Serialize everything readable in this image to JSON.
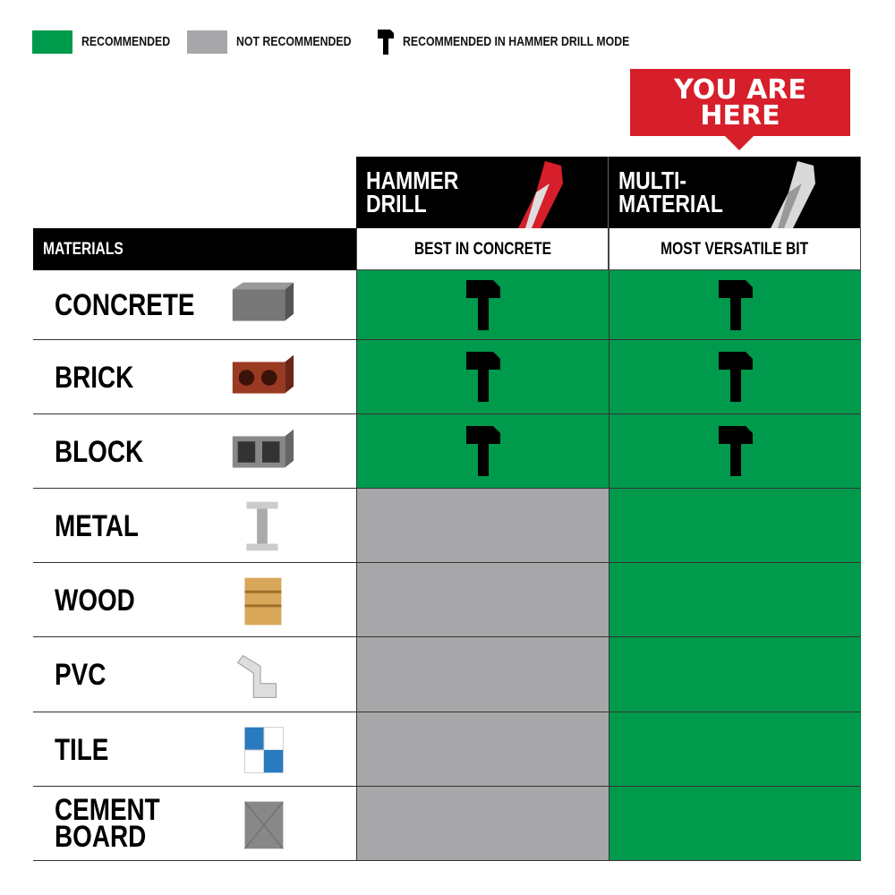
{
  "legend": [
    {
      "label": "RECOMMENDED",
      "color": "#009a4d"
    },
    {
      "label": "NOT RECOMMENDED",
      "color": "#a7a7aa"
    },
    {
      "label": "RECOMMENDED IN HAMMER DRILL MODE",
      "icon": "hammer-icon"
    }
  ],
  "callout": {
    "line1": "YOU ARE",
    "line2": "HERE",
    "color": "#d71f2b"
  },
  "columns": [
    {
      "title1": "HAMMER",
      "title2": "DRILL",
      "subtitle": "BEST IN CONCRETE",
      "bit_color": "#d71f2b"
    },
    {
      "title1": "MULTI-",
      "title2": "MATERIAL",
      "subtitle": "MOST VERSATILE BIT",
      "bit_color": "#d9d9d9"
    }
  ],
  "materials_header": "MATERIALS",
  "colors": {
    "recommended": "#009a4d",
    "not_recommended": "#a7a7aa"
  },
  "rows": [
    {
      "line1": "CONCRETE",
      "line2": "",
      "hammer_drill": "hammer",
      "multi_material": "hammer"
    },
    {
      "line1": "BRICK",
      "line2": "",
      "hammer_drill": "hammer",
      "multi_material": "hammer"
    },
    {
      "line1": "BLOCK",
      "line2": "",
      "hammer_drill": "hammer",
      "multi_material": "hammer"
    },
    {
      "line1": "METAL",
      "line2": "",
      "hammer_drill": "not_recommended",
      "multi_material": "recommended"
    },
    {
      "line1": "WOOD",
      "line2": "",
      "hammer_drill": "not_recommended",
      "multi_material": "recommended"
    },
    {
      "line1": "PVC",
      "line2": "",
      "hammer_drill": "not_recommended",
      "multi_material": "recommended"
    },
    {
      "line1": "TILE",
      "line2": "",
      "hammer_drill": "not_recommended",
      "multi_material": "recommended"
    },
    {
      "line1": "CEMENT",
      "line2": "BOARD",
      "hammer_drill": "not_recommended",
      "multi_material": "recommended"
    }
  ]
}
